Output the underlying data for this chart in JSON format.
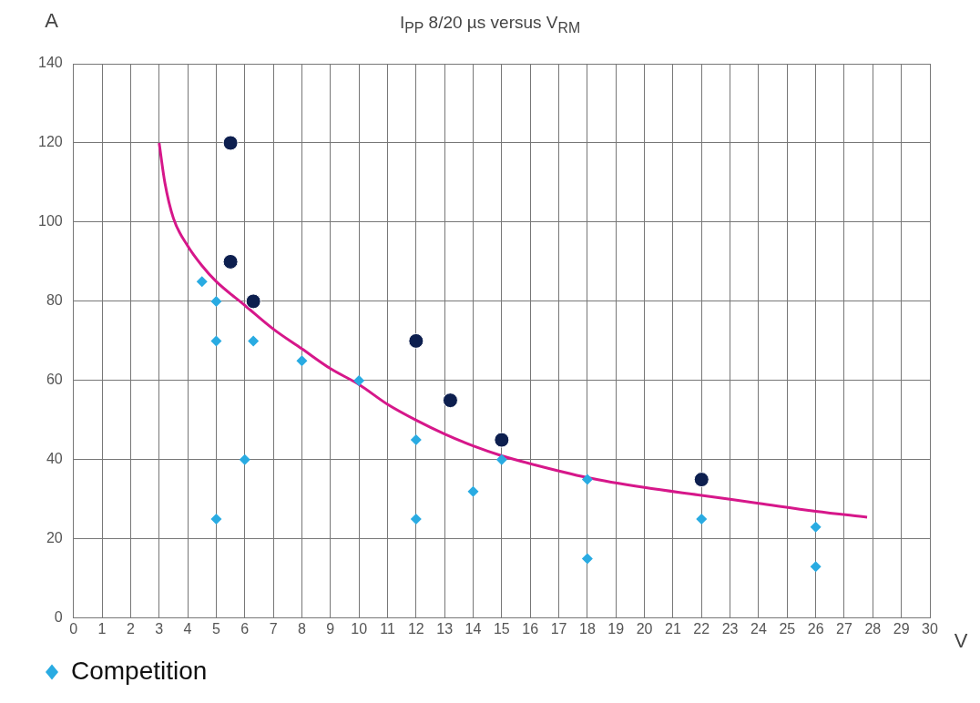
{
  "chart_data": {
    "type": "scatter",
    "title": "I$_{PP}$ 8/20 µs versus V$_{RM}$",
    "xlabel": "V",
    "ylabel": "A",
    "xlim": [
      0,
      30
    ],
    "xticks": [
      0,
      1,
      2,
      3,
      4,
      5,
      6,
      7,
      8,
      9,
      10,
      11,
      12,
      13,
      14,
      15,
      16,
      17,
      18,
      19,
      20,
      21,
      22,
      23,
      24,
      25,
      26,
      27,
      28,
      29,
      30
    ],
    "ylim": [
      0,
      140
    ],
    "yticks": [
      0,
      20,
      40,
      60,
      80,
      100,
      120,
      140
    ],
    "grid": true,
    "legend": "bottom",
    "series": [
      {
        "name": "Competition",
        "color": "#29abe2",
        "marker": "diamond",
        "x": [
          4.5,
          5,
          5,
          5,
          6,
          6.3,
          8,
          10,
          12,
          12,
          14,
          15,
          18,
          18,
          22,
          26,
          26
        ],
        "values": [
          85,
          80,
          70,
          25,
          40,
          70,
          65,
          60,
          45,
          25,
          32,
          40,
          35,
          15,
          25,
          23,
          13
        ]
      },
      {
        "color": "#0d1f4f",
        "marker": "circle",
        "x": [
          5.5,
          5.5,
          6.3,
          12,
          13.2,
          15,
          22
        ],
        "values": [
          120,
          90,
          80,
          70,
          55,
          45,
          35
        ]
      },
      {
        "type": "line",
        "color": "#d6178a",
        "marker": "none",
        "x": [
          3,
          3.2,
          3.5,
          4,
          4.5,
          5,
          6,
          7,
          8,
          9,
          10,
          11,
          12,
          13,
          14,
          15,
          16,
          18,
          20,
          22,
          24,
          26,
          27.8
        ],
        "values": [
          120,
          110,
          101,
          94,
          89,
          85,
          79,
          73,
          68,
          63,
          59,
          54,
          50,
          46.5,
          43.5,
          41,
          39,
          35.5,
          33,
          31,
          29,
          27,
          25.5
        ]
      }
    ]
  }
}
